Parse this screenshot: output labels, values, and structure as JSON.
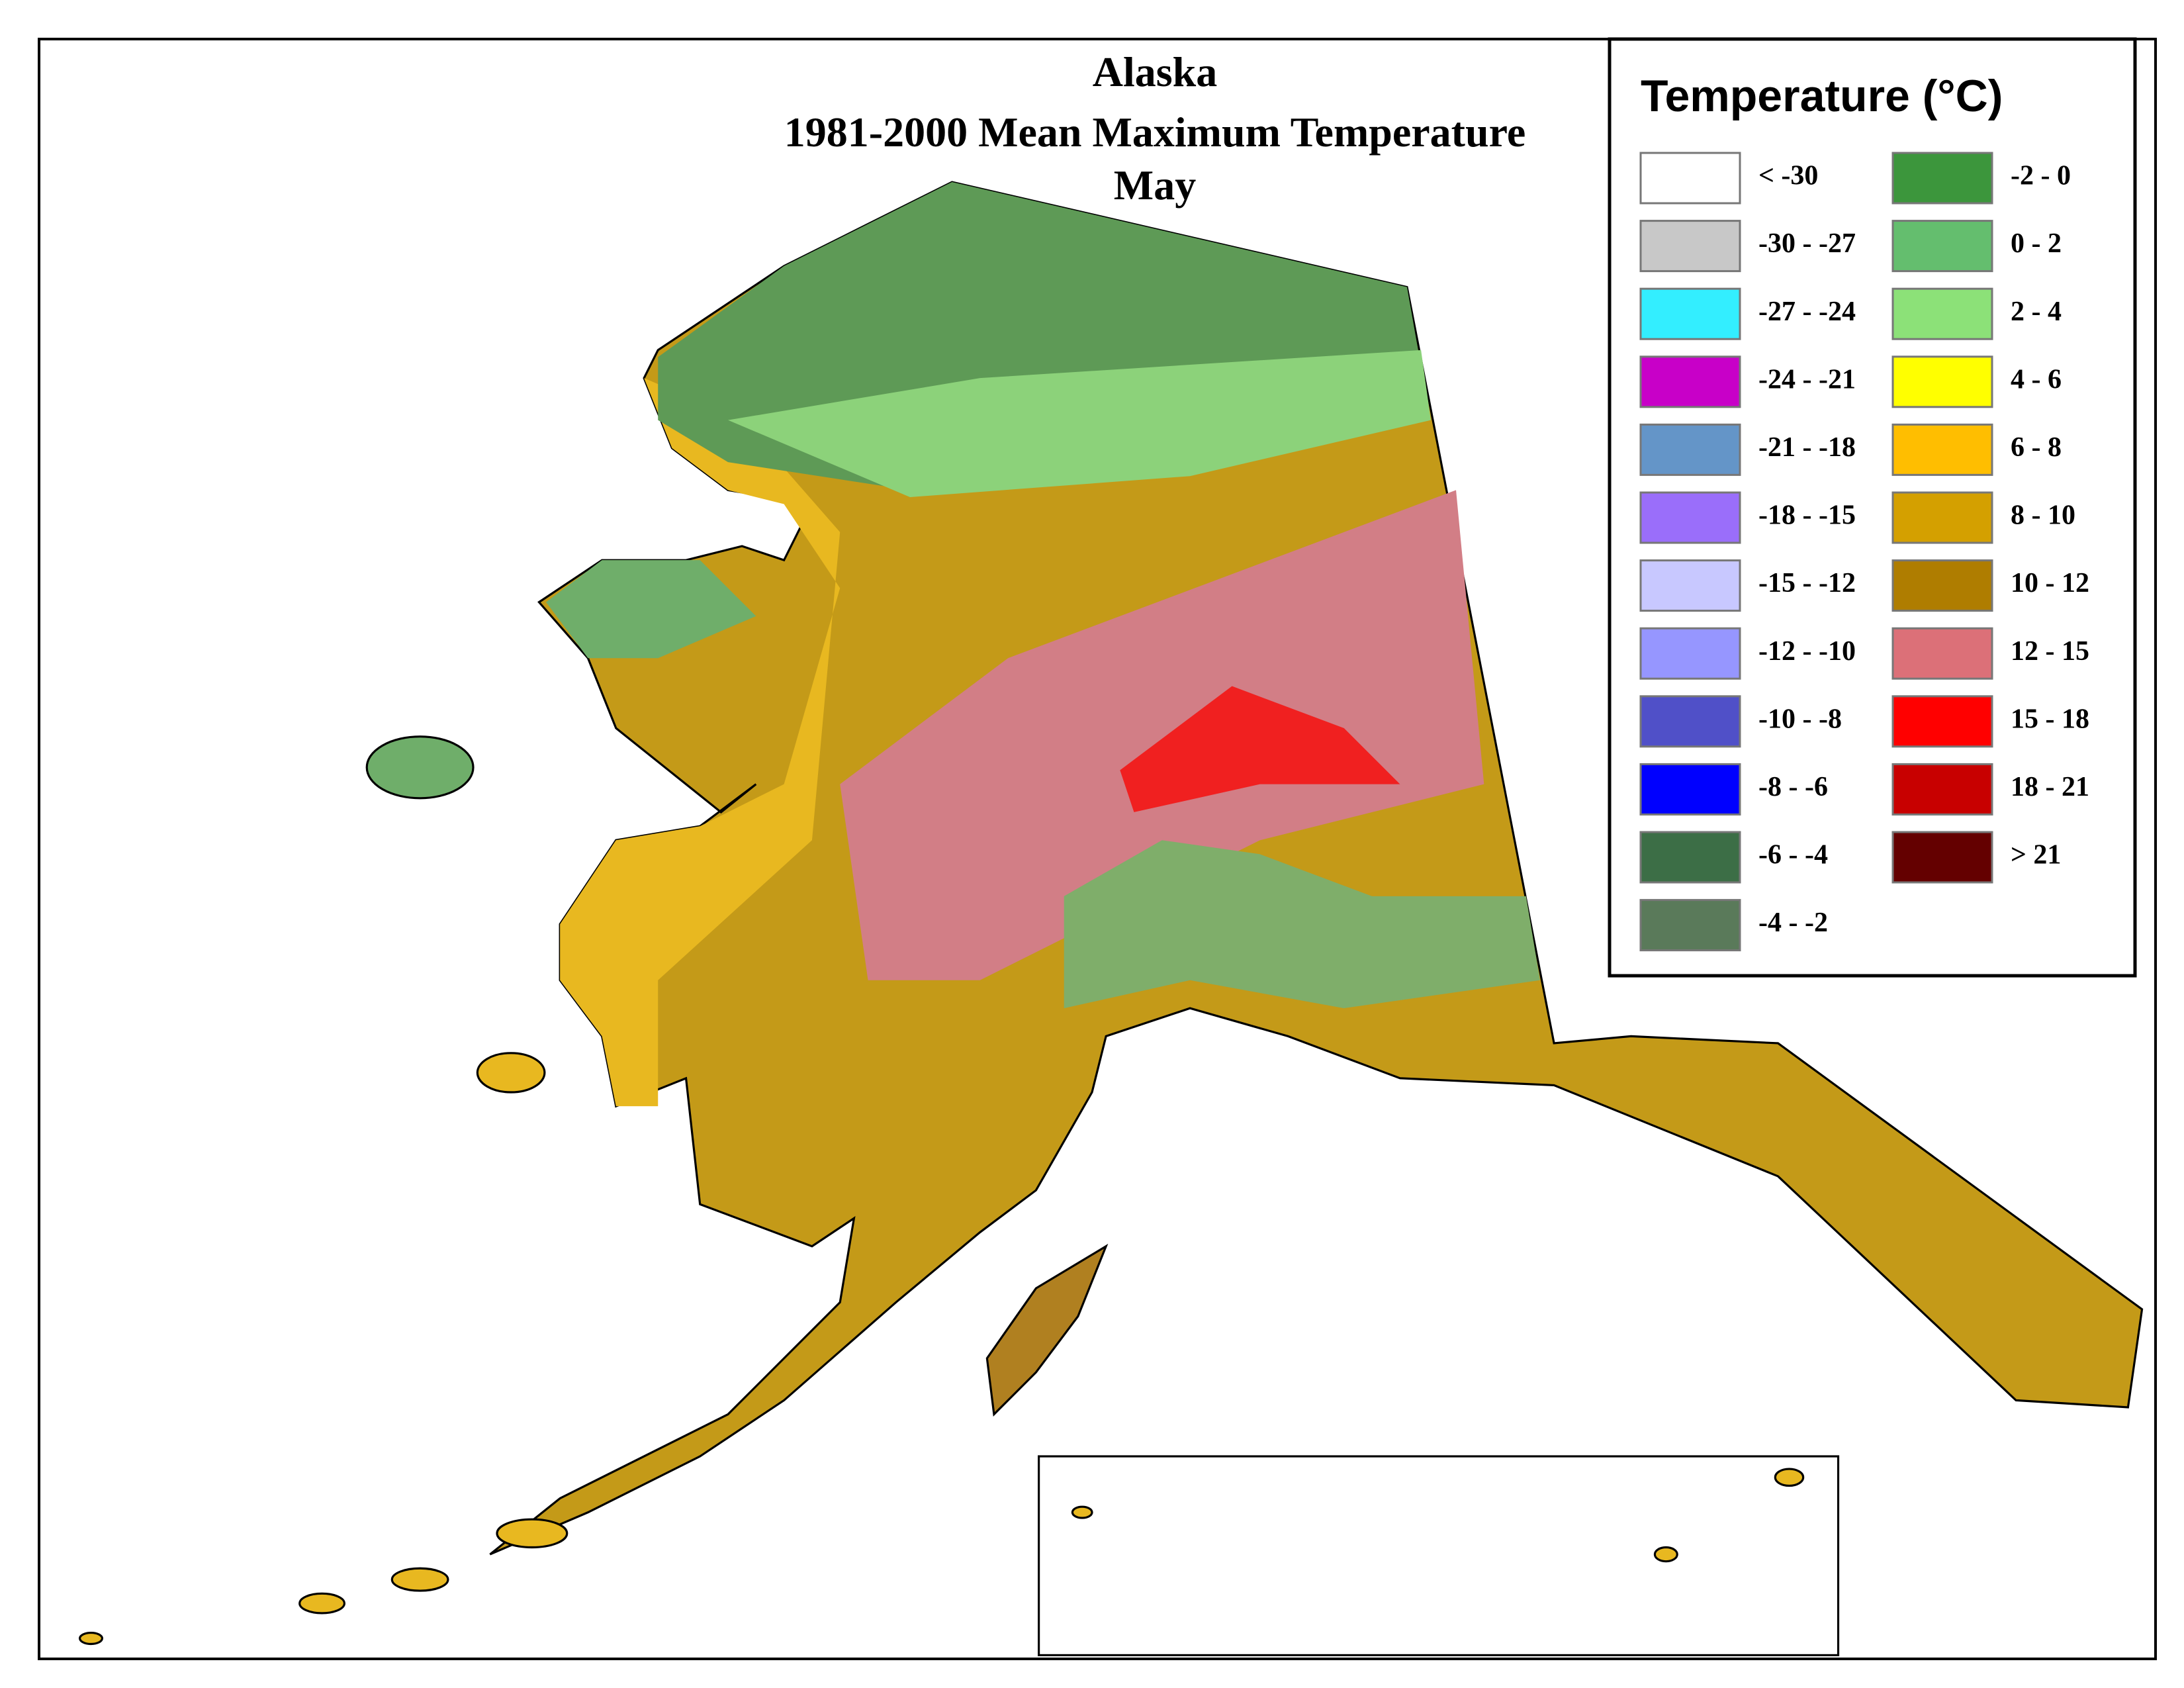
{
  "map": {
    "title": [
      "Alaska",
      "1981-2000 Mean Maximum Temperature",
      "May"
    ],
    "legend": {
      "title": "Temperature (°C)",
      "items": [
        {
          "label": "< -30",
          "color": "#ffffff"
        },
        {
          "label": "-30 - -27",
          "color": "#c8c8c8"
        },
        {
          "label": "-27 - -24",
          "color": "#33eeff"
        },
        {
          "label": "-24 - -21",
          "color": "#c800c8"
        },
        {
          "label": "-21 - -18",
          "color": "#6495c8"
        },
        {
          "label": "-18 - -15",
          "color": "#9a6efa"
        },
        {
          "label": "-15 - -12",
          "color": "#c8c8ff"
        },
        {
          "label": "-12 - -10",
          "color": "#9696ff"
        },
        {
          "label": "-10 - -8",
          "color": "#5050c8"
        },
        {
          "label": "-8 - -6",
          "color": "#0000ff"
        },
        {
          "label": "-6 - -4",
          "color": "#3c6e46"
        },
        {
          "label": "-4 - -2",
          "color": "#5a7a5a"
        },
        {
          "label": "-2 - 0",
          "color": "#3c963c"
        },
        {
          "label": "0 - 2",
          "color": "#64be6e"
        },
        {
          "label": "2 - 4",
          "color": "#8ce178"
        },
        {
          "label": "4 - 6",
          "color": "#ffff00"
        },
        {
          "label": "6 - 8",
          "color": "#ffbe00"
        },
        {
          "label": "8 - 10",
          "color": "#d4a000"
        },
        {
          "label": "10 - 12",
          "color": "#af7d00"
        },
        {
          "label": "12 - 15",
          "color": "#dc7078"
        },
        {
          "label": "15 - 18",
          "color": "#ff0000"
        },
        {
          "label": "18 - 21",
          "color": "#c80000"
        },
        {
          "label": "> 21",
          "color": "#640000"
        }
      ]
    }
  }
}
